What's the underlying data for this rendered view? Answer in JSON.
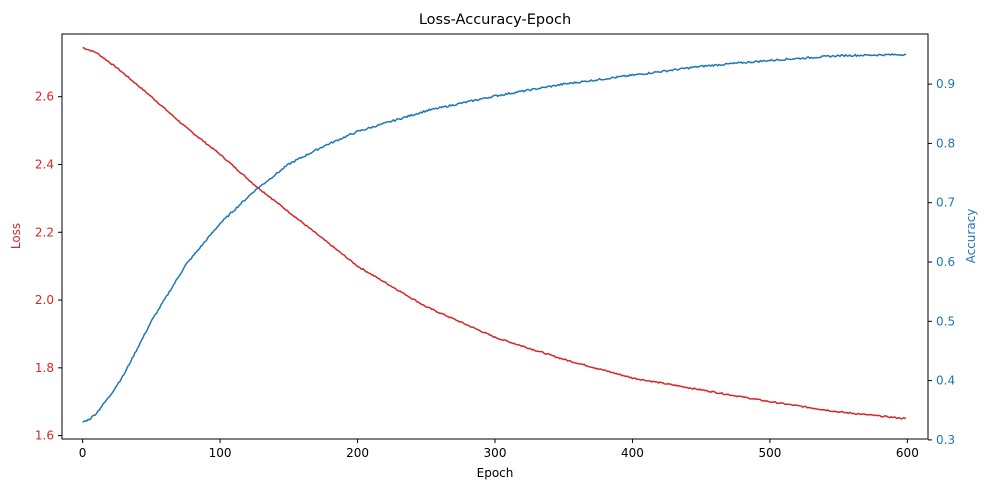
{
  "chart_data": {
    "type": "line",
    "title": "Loss-Accuracy-Epoch",
    "xlabel": "Epoch",
    "xlim": [
      -15,
      615
    ],
    "x_ticks": [
      0,
      100,
      200,
      300,
      400,
      500,
      600
    ],
    "y_left": {
      "label": "Loss",
      "color": "#d62728",
      "lim": [
        1.59,
        2.785
      ],
      "ticks": [
        1.6,
        1.8,
        2.0,
        2.2,
        2.4,
        2.6
      ]
    },
    "y_right": {
      "label": "Accuracy",
      "color": "#1f77b4",
      "lim": [
        0.3015,
        0.9845
      ],
      "ticks": [
        0.3,
        0.4,
        0.5,
        0.6,
        0.7,
        0.8,
        0.9
      ]
    },
    "series": [
      {
        "name": "Loss",
        "axis": "left",
        "color": "#d62728",
        "x": [
          0,
          10,
          25,
          50,
          75,
          100,
          125,
          150,
          175,
          200,
          250,
          300,
          350,
          400,
          450,
          500,
          550,
          599
        ],
        "values": [
          2.745,
          2.73,
          2.685,
          2.6,
          2.51,
          2.43,
          2.34,
          2.26,
          2.18,
          2.1,
          1.98,
          1.89,
          1.825,
          1.77,
          1.735,
          1.7,
          1.67,
          1.65
        ]
      },
      {
        "name": "Accuracy",
        "axis": "right",
        "color": "#1f77b4",
        "x": [
          0,
          5,
          10,
          20,
          30,
          50,
          75,
          100,
          125,
          150,
          175,
          200,
          250,
          300,
          350,
          400,
          450,
          500,
          550,
          599
        ],
        "values": [
          0.33,
          0.335,
          0.345,
          0.375,
          0.41,
          0.5,
          0.595,
          0.665,
          0.72,
          0.765,
          0.795,
          0.82,
          0.855,
          0.88,
          0.9,
          0.915,
          0.93,
          0.94,
          0.948,
          0.95
        ]
      }
    ]
  }
}
